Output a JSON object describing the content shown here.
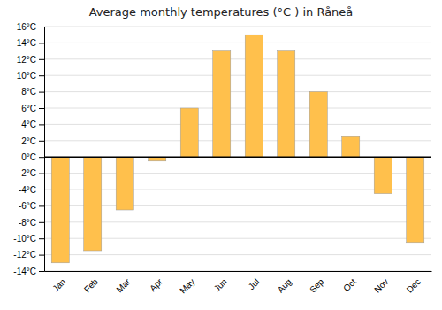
{
  "chart_data": {
    "type": "bar",
    "title": "Average monthly temperatures (°C ) in Råneå",
    "categories": [
      "Jan",
      "Feb",
      "Mar",
      "Apr",
      "May",
      "Jun",
      "Jul",
      "Aug",
      "Sep",
      "Oct",
      "Nov",
      "Dec"
    ],
    "values": [
      -13,
      -11.5,
      -6.5,
      -0.5,
      6,
      13,
      15,
      13,
      8,
      2.5,
      -4.5,
      -10.5
    ],
    "color": "#FFC04C",
    "ylim": [
      -14,
      16
    ],
    "yticks": [
      {
        "value": -14,
        "label": "-14°C"
      },
      {
        "value": -12,
        "label": "-12°C"
      },
      {
        "value": -10,
        "label": "-10°C"
      },
      {
        "value": -8,
        "label": "-8°C"
      },
      {
        "value": -6,
        "label": "-6°C"
      },
      {
        "value": -4,
        "label": "-4°C"
      },
      {
        "value": -2,
        "label": "-2°C"
      },
      {
        "value": 0,
        "label": "0°C"
      },
      {
        "value": 2,
        "label": "2°C"
      },
      {
        "value": 4,
        "label": "4°C"
      },
      {
        "value": 6,
        "label": "6°C"
      },
      {
        "value": 8,
        "label": "8°C"
      },
      {
        "value": 10,
        "label": "10°C"
      },
      {
        "value": 12,
        "label": "12°C"
      },
      {
        "value": 14,
        "label": "14°C"
      },
      {
        "value": 16,
        "label": "16°C"
      }
    ],
    "grid": true
  }
}
